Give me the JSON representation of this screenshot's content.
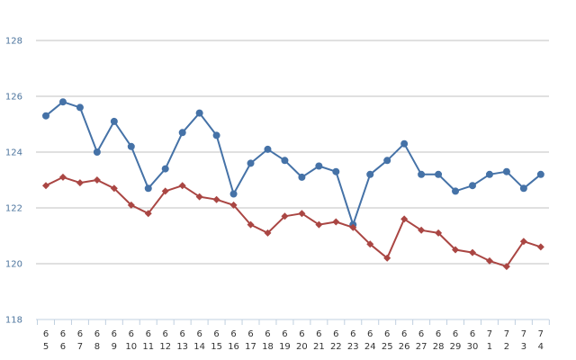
{
  "chart_data": {
    "type": "line",
    "title": "",
    "xlabel": "",
    "ylabel": "",
    "ylim": [
      118,
      128
    ],
    "yticks": [
      118,
      120,
      122,
      124,
      126,
      128
    ],
    "grid": true,
    "legend": "none",
    "categories": [
      {
        "month": "6",
        "day": "5"
      },
      {
        "month": "6",
        "day": "6"
      },
      {
        "month": "6",
        "day": "7"
      },
      {
        "month": "6",
        "day": "8"
      },
      {
        "month": "6",
        "day": "9"
      },
      {
        "month": "6",
        "day": "10"
      },
      {
        "month": "6",
        "day": "11"
      },
      {
        "month": "6",
        "day": "12"
      },
      {
        "month": "6",
        "day": "13"
      },
      {
        "month": "6",
        "day": "14"
      },
      {
        "month": "6",
        "day": "15"
      },
      {
        "month": "6",
        "day": "16"
      },
      {
        "month": "6",
        "day": "17"
      },
      {
        "month": "6",
        "day": "18"
      },
      {
        "month": "6",
        "day": "19"
      },
      {
        "month": "6",
        "day": "20"
      },
      {
        "month": "6",
        "day": "21"
      },
      {
        "month": "6",
        "day": "22"
      },
      {
        "month": "6",
        "day": "23"
      },
      {
        "month": "6",
        "day": "24"
      },
      {
        "month": "6",
        "day": "25"
      },
      {
        "month": "6",
        "day": "26"
      },
      {
        "month": "6",
        "day": "27"
      },
      {
        "month": "6",
        "day": "28"
      },
      {
        "month": "6",
        "day": "29"
      },
      {
        "month": "6",
        "day": "30"
      },
      {
        "month": "7",
        "day": "1"
      },
      {
        "month": "7",
        "day": "2"
      },
      {
        "month": "7",
        "day": "3"
      },
      {
        "month": "7",
        "day": "4"
      }
    ],
    "series": [
      {
        "marker": "circle",
        "color": "#4572a7",
        "values": [
          125.3,
          125.8,
          125.6,
          124.0,
          125.1,
          124.2,
          122.7,
          123.4,
          124.7,
          125.4,
          124.6,
          122.5,
          123.6,
          124.1,
          123.7,
          123.1,
          123.5,
          123.3,
          121.4,
          123.2,
          123.7,
          124.3,
          123.2,
          123.2,
          122.6,
          122.8,
          123.2,
          123.3,
          122.7,
          123.2
        ]
      },
      {
        "marker": "diamond",
        "color": "#aa4643",
        "values": [
          122.8,
          123.1,
          122.9,
          123.0,
          122.7,
          122.1,
          121.8,
          122.6,
          122.8,
          122.4,
          122.3,
          122.1,
          121.4,
          121.1,
          121.7,
          121.8,
          121.4,
          121.5,
          121.3,
          120.7,
          120.2,
          121.6,
          121.2,
          121.1,
          120.5,
          120.4,
          120.1,
          119.9,
          120.8,
          120.6
        ]
      }
    ],
    "colors": {
      "grid": "#c0c0c0",
      "axis": "#c0d0e0",
      "tick_label": "#4d759e"
    }
  }
}
